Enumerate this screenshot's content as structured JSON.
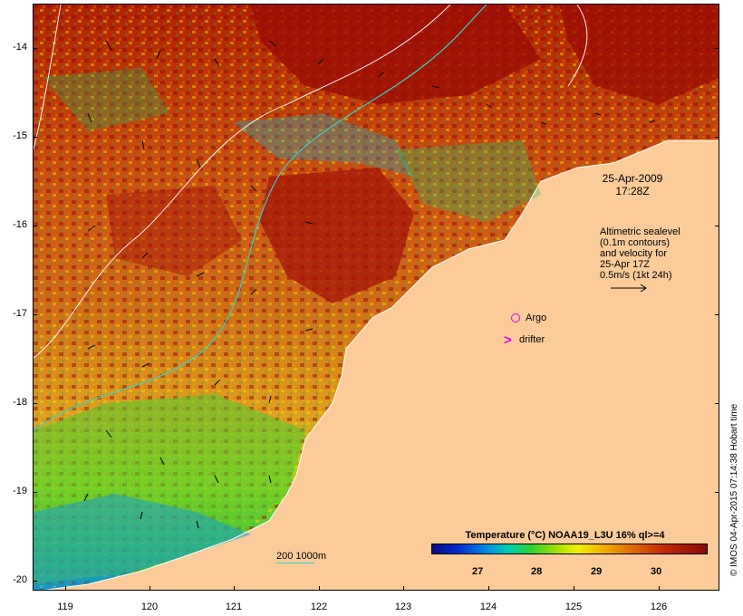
{
  "map": {
    "lat_labels": [
      "-14",
      "-15",
      "-16",
      "-17",
      "-18",
      "-19",
      "-20"
    ],
    "lon_labels": [
      "119",
      "120",
      "121",
      "122",
      "123",
      "124",
      "125",
      "126"
    ],
    "date_line1": "25-Apr-2009",
    "date_line2": "17:28Z",
    "sealevel_lines": [
      "Altimetric sealevel",
      "(0.1m contours)",
      "and velocity for",
      "25-Apr 17Z",
      "0.5m/s (1kt 24h)"
    ],
    "argo_label": "Argo",
    "drifter_marker": ">",
    "drifter_label": "drifter",
    "contour_legend": "200  1000m",
    "colorbar_title": "Temperature (°C) NOAA19_L3U 16% ql>=4",
    "colorbar_ticks": [
      "27",
      "28",
      "29",
      "30"
    ],
    "credit": "© IMOS 04-Apr-2015 07:14:38 Hobart time"
  },
  "colors": {
    "land": "#fbcb9a",
    "contour_200": "#39d1c7",
    "contour_sealevel": "#ffffff",
    "markers": "#e000e0"
  }
}
